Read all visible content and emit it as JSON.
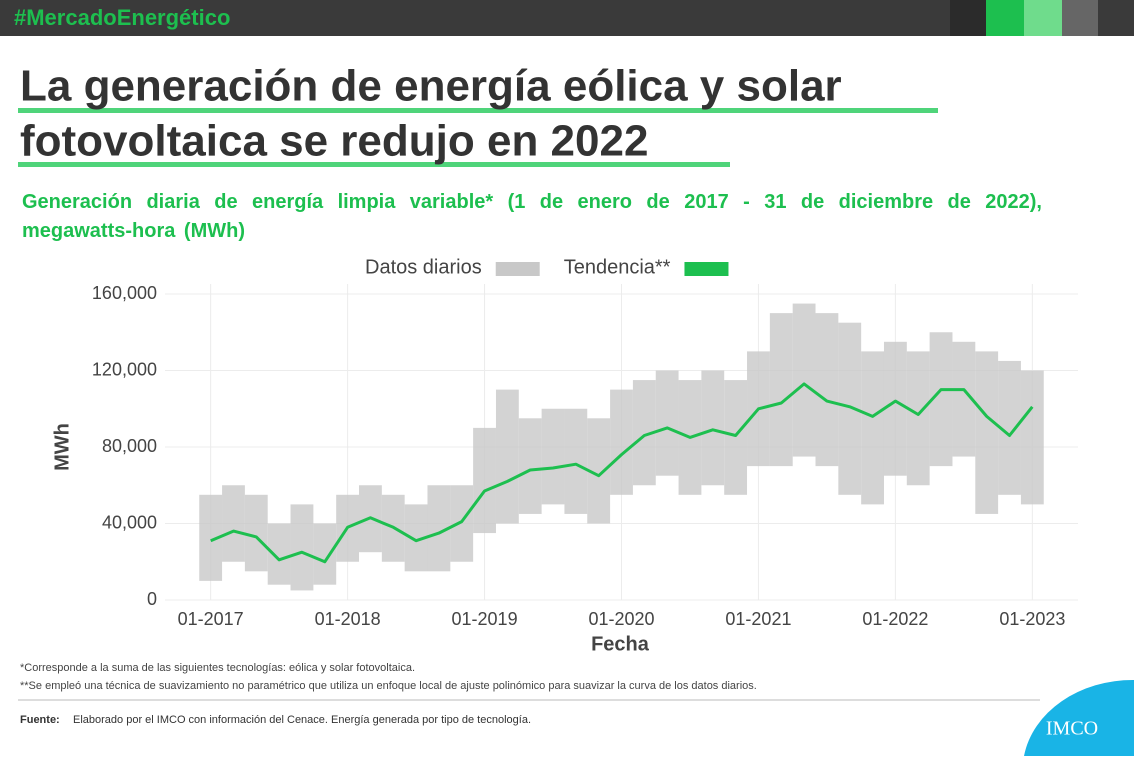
{
  "header": {
    "hashtag": "#MercadoEnergético",
    "title_lines": [
      "La generación de energía eólica y solar",
      "fotovoltaica se redujo en 2022"
    ]
  },
  "chart_data": {
    "type": "line",
    "subtitle": "Generación diaria de energía limpia variable* (1 de enero de 2017 - 31 de diciembre de 2022), megawatts-hora (MWh)",
    "x_label": "Fecha",
    "y_label": "MWh",
    "x": [
      "2017-01",
      "2017-03",
      "2017-05",
      "2017-07",
      "2017-09",
      "2017-11",
      "2018-01",
      "2018-03",
      "2018-05",
      "2018-07",
      "2018-09",
      "2018-11",
      "2019-01",
      "2019-03",
      "2019-05",
      "2019-07",
      "2019-09",
      "2019-11",
      "2020-01",
      "2020-03",
      "2020-05",
      "2020-07",
      "2020-09",
      "2020-11",
      "2021-01",
      "2021-03",
      "2021-05",
      "2021-07",
      "2021-09",
      "2021-11",
      "2022-01",
      "2022-03",
      "2022-05",
      "2022-07",
      "2022-09",
      "2022-11",
      "2023-01"
    ],
    "series": [
      {
        "name": "Datos diarios",
        "color": "#c8c8c8",
        "low": [
          10000,
          20000,
          15000,
          8000,
          5000,
          8000,
          20000,
          25000,
          20000,
          15000,
          15000,
          20000,
          35000,
          40000,
          45000,
          50000,
          45000,
          40000,
          55000,
          60000,
          65000,
          55000,
          60000,
          55000,
          70000,
          70000,
          75000,
          70000,
          55000,
          50000,
          65000,
          60000,
          70000,
          75000,
          45000,
          55000,
          50000
        ],
        "high": [
          55000,
          60000,
          55000,
          40000,
          50000,
          40000,
          55000,
          60000,
          55000,
          50000,
          60000,
          60000,
          90000,
          110000,
          95000,
          100000,
          100000,
          95000,
          110000,
          115000,
          120000,
          115000,
          120000,
          115000,
          130000,
          150000,
          155000,
          150000,
          145000,
          130000,
          135000,
          130000,
          140000,
          135000,
          130000,
          125000,
          120000
        ]
      },
      {
        "name": "Tendencia**",
        "color": "#1dbf4f",
        "values": [
          31000,
          36000,
          33000,
          21000,
          25000,
          20000,
          38000,
          43000,
          38000,
          31000,
          35000,
          41000,
          57000,
          62000,
          68000,
          69000,
          71000,
          65000,
          76000,
          86000,
          90000,
          85000,
          89000,
          86000,
          100000,
          103000,
          113000,
          104000,
          101000,
          96000,
          104000,
          97000,
          110000,
          110000,
          96000,
          86000,
          101000
        ]
      }
    ],
    "ylim": [
      0,
      160000
    ],
    "yticks": [
      0,
      {
        "value": 40000,
        "label": "40,000"
      },
      {
        "value": 80000,
        "label": "80,000"
      },
      {
        "value": 120000,
        "label": "120,000"
      },
      {
        "value": 160000,
        "label": "160,000"
      }
    ],
    "xlim": [
      "2016-09",
      "2023-05"
    ],
    "xticks": [
      {
        "value": "2017-01",
        "label": "01-2017"
      },
      {
        "value": "2018-01",
        "label": "01-2018"
      },
      {
        "value": "2019-01",
        "label": "01-2019"
      },
      {
        "value": "2020-01",
        "label": "01-2020"
      },
      {
        "value": "2021-01",
        "label": "01-2021"
      },
      {
        "value": "2022-01",
        "label": "01-2022"
      },
      {
        "value": "2023-01",
        "label": "01-2023"
      }
    ],
    "grid": true,
    "legend": "top"
  },
  "footnotes": [
    "*Corresponde a la suma de las siguientes tecnologías: eólica y solar fotovoltaica.",
    "**Se empleó una técnica de suavizamiento no paramétrico que utiliza un enfoque local de ajuste polinómico para suavizar la curva de los datos diarios."
  ],
  "source": {
    "label": "Fuente:",
    "text": "Elaborado por el IMCO con información del Cenace. Energía generada por tipo de tecnología."
  },
  "logo": "IMCO"
}
